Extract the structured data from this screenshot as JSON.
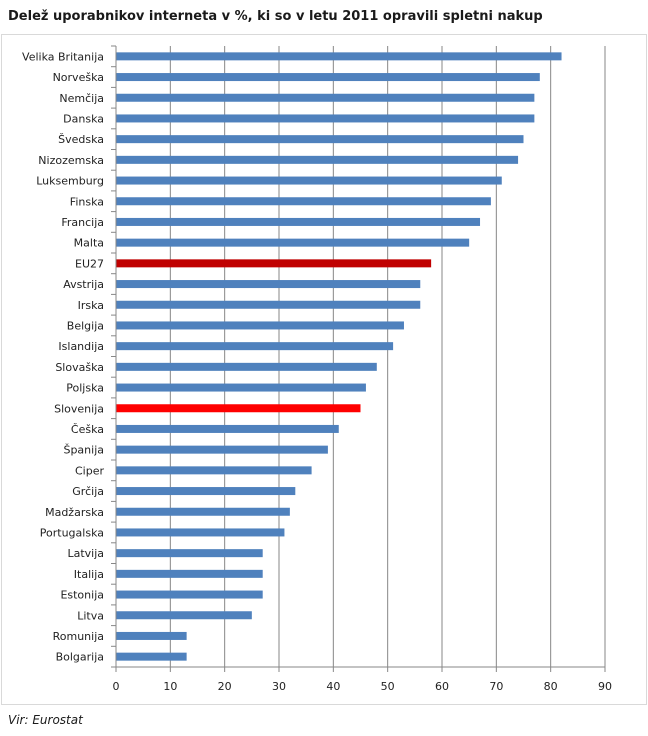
{
  "chart_data": {
    "type": "bar",
    "orientation": "horizontal",
    "title": "Delež uporabnikov interneta v %, ki so v letu 2011 opravili spletni nakup",
    "categories": [
      "Velika Britanija",
      "Norveška",
      "Nemčija",
      "Danska",
      "Švedska",
      "Nizozemska",
      "Luksemburg",
      "Finska",
      "Francija",
      "Malta",
      "EU27",
      "Avstrija",
      "Irska",
      "Belgija",
      "Islandija",
      "Slovaška",
      "Poljska",
      "Slovenija",
      "Češka",
      "Španija",
      "Ciper",
      "Grčija",
      "Madžarska",
      "Portugalska",
      "Latvija",
      "Italija",
      "Estonija",
      "Litva",
      "Romunija",
      "Bolgarija"
    ],
    "values": [
      82,
      78,
      77,
      77,
      75,
      74,
      71,
      69,
      67,
      65,
      58,
      56,
      56,
      53,
      51,
      48,
      46,
      45,
      41,
      39,
      36,
      33,
      32,
      31,
      27,
      27,
      27,
      25,
      13,
      13
    ],
    "highlight": {
      "EU27": "#c00000",
      "Slovenija": "#ff0000"
    },
    "bar_color": "#4f81bd",
    "xlim": [
      0,
      90
    ],
    "xticks": [
      0,
      10,
      20,
      30,
      40,
      50,
      60,
      70,
      80,
      90
    ],
    "grid": "vertical",
    "xlabel": "",
    "ylabel": ""
  },
  "source": "Vir: Eurostat"
}
